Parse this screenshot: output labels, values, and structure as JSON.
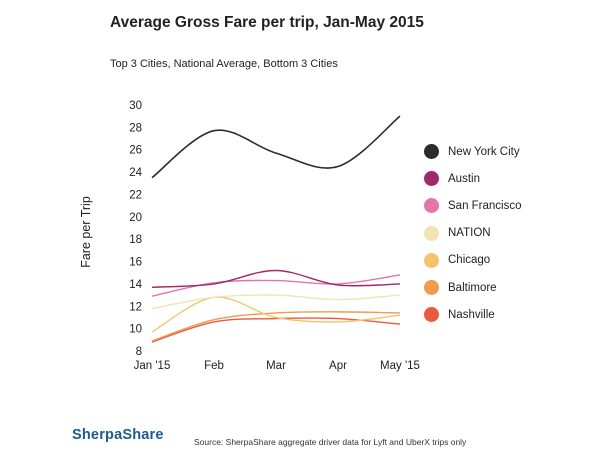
{
  "chart_data": {
    "type": "line",
    "title": "Average Gross Fare per trip, Jan-May 2015",
    "subtitle": "Top 3 Cities, National Average, Bottom 3 Cities",
    "xlabel": "",
    "ylabel": "Fare per Trip",
    "categories": [
      "Jan '15",
      "Feb",
      "Mar",
      "Apr",
      "May '15"
    ],
    "ylim": [
      8,
      30
    ],
    "yticks": [
      8,
      10,
      12,
      14,
      16,
      18,
      20,
      22,
      24,
      26,
      28,
      30
    ],
    "grid": false,
    "legend_position": "right",
    "series": [
      {
        "name": "New York City",
        "color": "#2a2d2d",
        "values": [
          23.5,
          27.7,
          25.7,
          24.5,
          29.0
        ]
      },
      {
        "name": "Austin",
        "color": "#a3286a",
        "values": [
          13.7,
          14.0,
          15.2,
          13.9,
          14.0
        ]
      },
      {
        "name": "San Francisco",
        "color": "#e575a8",
        "values": [
          12.9,
          14.1,
          14.3,
          14.0,
          14.8
        ]
      },
      {
        "name": "NATION",
        "color": "#f1e4b2",
        "values": [
          11.8,
          12.8,
          13.0,
          12.6,
          13.0
        ]
      },
      {
        "name": "Chicago",
        "color": "#f3c46e",
        "values": [
          9.7,
          12.8,
          11.0,
          10.6,
          11.2
        ]
      },
      {
        "name": "Baltimore",
        "color": "#f29a4e",
        "values": [
          8.9,
          10.8,
          11.4,
          11.5,
          11.4
        ]
      },
      {
        "name": "Nashville",
        "color": "#ea5a3d",
        "values": [
          8.8,
          10.6,
          10.9,
          10.9,
          10.4
        ]
      }
    ]
  },
  "footer": {
    "brand": "SherpaShare",
    "source": "Source: SherpaShare aggregate driver data for Lyft and UberX trips only"
  }
}
